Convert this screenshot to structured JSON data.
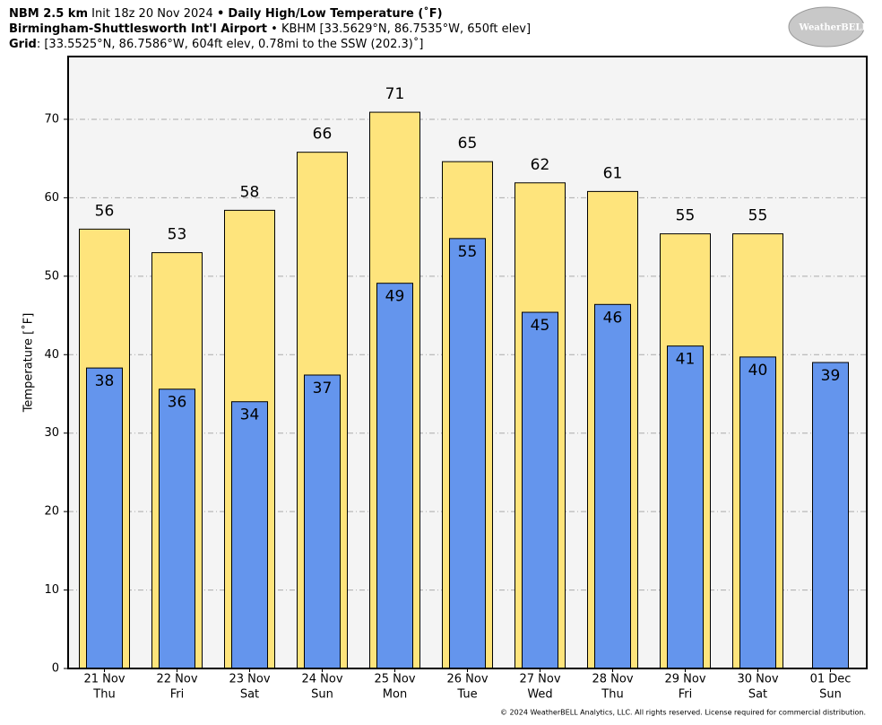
{
  "chart_data": {
    "type": "bar",
    "header": {
      "model": "NBM 2.5 km",
      "init": "Init 18z 20 Nov 2024",
      "separator": "•",
      "product": "Daily High/Low Temperature (˚F)",
      "station": "Birmingham-Shuttlesworth Int'l Airport",
      "station_info": "KBHM [33.5629°N, 86.7535°W, 650ft elev]",
      "grid_label": "Grid",
      "grid_info": ": [33.5525°N, 86.7586°W, 604ft elev, 0.78mi to the SSW (202.3)˚]"
    },
    "logo": "WeatherBELL",
    "footer": "© 2024 WeatherBELL Analytics, LLC. All rights reserved. License required for commercial distribution.",
    "y_label": "Temperature [˚F]",
    "categories": [
      "21 Nov",
      "22 Nov",
      "23 Nov",
      "24 Nov",
      "25 Nov",
      "26 Nov",
      "27 Nov",
      "28 Nov",
      "29 Nov",
      "30 Nov",
      "01 Dec"
    ],
    "weekdays": [
      "Thu",
      "Fri",
      "Sat",
      "Sun",
      "Mon",
      "Tue",
      "Wed",
      "Thu",
      "Fri",
      "Sat",
      "Sun"
    ],
    "series": [
      {
        "name": "High",
        "color": "#fee47c",
        "values": [
          56.0,
          53.0,
          58.4,
          65.8,
          70.9,
          64.6,
          61.9,
          60.8,
          55.4,
          55.4,
          null
        ],
        "value_labels": [
          "56",
          "53",
          "58",
          "66",
          "71",
          "65",
          "62",
          "61",
          "55",
          "55",
          null
        ]
      },
      {
        "name": "Low",
        "color": "#6495ed",
        "values": [
          38.3,
          35.6,
          34.0,
          37.4,
          49.1,
          54.8,
          45.4,
          46.4,
          41.1,
          39.7,
          39.0
        ],
        "value_labels": [
          "38",
          "36",
          "34",
          "37",
          "49",
          "55",
          "45",
          "46",
          "41",
          "40",
          "39"
        ]
      }
    ],
    "ylim": [
      0,
      78
    ],
    "yticks": [
      0,
      10,
      20,
      30,
      40,
      50,
      60,
      70
    ],
    "grid": true,
    "background": "#f4f4f4"
  }
}
